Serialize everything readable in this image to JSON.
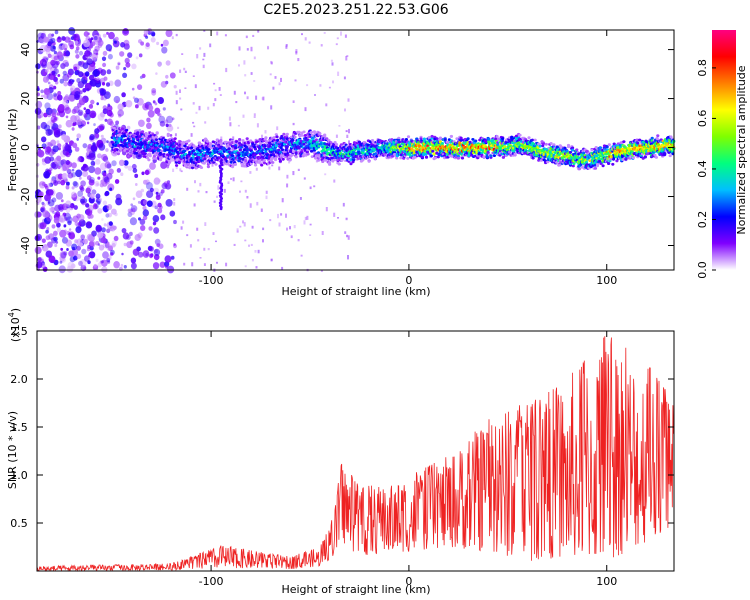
{
  "title": "C2E5.2023.251.22.53.G06",
  "chart_data": [
    {
      "type": "heatmap",
      "xlabel": "Height of straight line (km)",
      "ylabel": "Frequency (Hz)",
      "xlim": [
        -188,
        134
      ],
      "ylim": [
        -50,
        48
      ],
      "x_ticks": [
        "-100",
        "0",
        "100"
      ],
      "y_ticks": [
        "-40",
        "-20",
        "0",
        "20",
        "40"
      ],
      "colorbar": {
        "label": "Normalized spectral amplitude",
        "range": [
          0.0,
          0.95
        ],
        "ticks": [
          "0.0",
          "0.2",
          "0.4",
          "0.6",
          "0.8"
        ],
        "colormap": [
          "#ffffff",
          "#7f00ff",
          "#0000ff",
          "#00bfff",
          "#00ff7f",
          "#7fff00",
          "#ffff00",
          "#ff7f00",
          "#ff0000",
          "#ff0080"
        ]
      },
      "description_points": {
        "ridge_center_hz": [
          {
            "x": -145,
            "y": 3
          },
          {
            "x": -125,
            "y": 0
          },
          {
            "x": -110,
            "y": -3
          },
          {
            "x": -95,
            "y": -2
          },
          {
            "x": -80,
            "y": -2
          },
          {
            "x": -65,
            "y": 0
          },
          {
            "x": -50,
            "y": 2
          },
          {
            "x": -35,
            "y": -3
          },
          {
            "x": -20,
            "y": -1
          },
          {
            "x": 0,
            "y": 0
          },
          {
            "x": 20,
            "y": 0
          },
          {
            "x": 40,
            "y": 0
          },
          {
            "x": 55,
            "y": 1
          },
          {
            "x": 70,
            "y": -2
          },
          {
            "x": 90,
            "y": -5
          },
          {
            "x": 110,
            "y": -1
          },
          {
            "x": 134,
            "y": 1
          }
        ]
      }
    },
    {
      "type": "line",
      "xlabel": "Height of straight line (km)",
      "ylabel": "SNR (10 * v/v)",
      "y_multiplier": "(x10",
      "y_multiplier_exp": "4",
      "y_multiplier_close": ")",
      "xlim": [
        -188,
        134
      ],
      "ylim": [
        0,
        2.5
      ],
      "x_ticks": [
        "-100",
        "0",
        "100"
      ],
      "y_ticks": [
        "0.5",
        "1.0",
        "1.5",
        "2.0",
        "2.5"
      ],
      "series_color": "#ff0000",
      "envelope": [
        {
          "x": -188,
          "low": 0.0,
          "high": 0.05
        },
        {
          "x": -120,
          "low": 0.01,
          "high": 0.08
        },
        {
          "x": -110,
          "low": 0.02,
          "high": 0.15
        },
        {
          "x": -95,
          "low": 0.03,
          "high": 0.27
        },
        {
          "x": -80,
          "low": 0.03,
          "high": 0.22
        },
        {
          "x": -60,
          "low": 0.02,
          "high": 0.15
        },
        {
          "x": -45,
          "low": 0.05,
          "high": 0.25
        },
        {
          "x": -38,
          "low": 0.15,
          "high": 0.6
        },
        {
          "x": -34,
          "low": 0.3,
          "high": 1.15
        },
        {
          "x": -25,
          "low": 0.15,
          "high": 0.9
        },
        {
          "x": -10,
          "low": 0.2,
          "high": 0.9
        },
        {
          "x": 0,
          "low": 0.2,
          "high": 1.0
        },
        {
          "x": 20,
          "low": 0.25,
          "high": 1.2
        },
        {
          "x": 40,
          "low": 0.2,
          "high": 1.6
        },
        {
          "x": 60,
          "low": 0.1,
          "high": 1.8
        },
        {
          "x": 80,
          "low": 0.15,
          "high": 2.0
        },
        {
          "x": 100,
          "low": 0.1,
          "high": 2.5
        },
        {
          "x": 120,
          "low": 0.3,
          "high": 2.2
        },
        {
          "x": 134,
          "low": 0.4,
          "high": 1.8
        }
      ]
    }
  ]
}
